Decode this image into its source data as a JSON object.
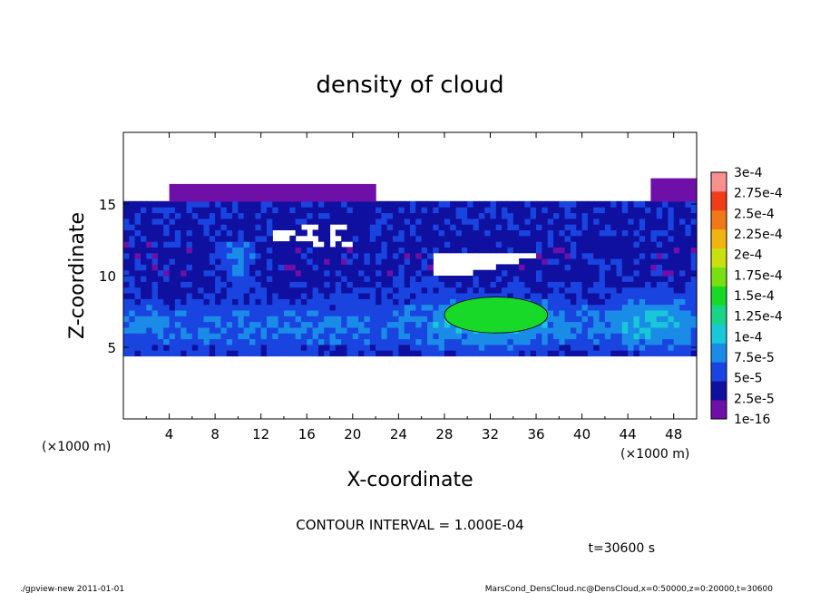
{
  "chart_data": {
    "type": "heatmap",
    "title": "density of cloud",
    "xlabel": "X-coordinate",
    "ylabel": "Z-coordinate",
    "x_unit": "(×1000 m)",
    "z_unit": "(×1000 m)",
    "xlim": [
      0,
      50
    ],
    "ylim": [
      0,
      20
    ],
    "x_ticks": [
      "4",
      "8",
      "12",
      "16",
      "20",
      "24",
      "28",
      "32",
      "36",
      "40",
      "44",
      "48"
    ],
    "y_ticks": [
      "5",
      "10",
      "15"
    ],
    "colorbar": {
      "labels": [
        "1e-16",
        "2.5e-5",
        "5e-5",
        "7.5e-5",
        "1e-4",
        "1.25e-4",
        "1.5e-4",
        "1.75e-4",
        "2e-4",
        "2.25e-4",
        "2.5e-4",
        "2.75e-4",
        "3e-4"
      ],
      "colors": [
        "#6e10a8",
        "#1010a0",
        "#1a44e0",
        "#1a8ce8",
        "#18c8d8",
        "#18d488",
        "#18d828",
        "#78e010",
        "#c8e010",
        "#f0b410",
        "#f07818",
        "#f03c18",
        "#f89090"
      ]
    },
    "contour_interval": "CONTOUR INTERVAL = 1.000E-04",
    "time": "t=30600 s",
    "cloud_layer_z": [
      4.4,
      16.8
    ],
    "max_density_region": {
      "x_range": [
        28,
        37
      ],
      "z_range": [
        6,
        8.5
      ],
      "level": "1.5e-4"
    }
  },
  "footer": {
    "left": "./gpview-new  2011-01-01",
    "right": "MarsCond_DensCloud.nc@DensCloud,x=0:50000,z=0:20000,t=30600"
  }
}
